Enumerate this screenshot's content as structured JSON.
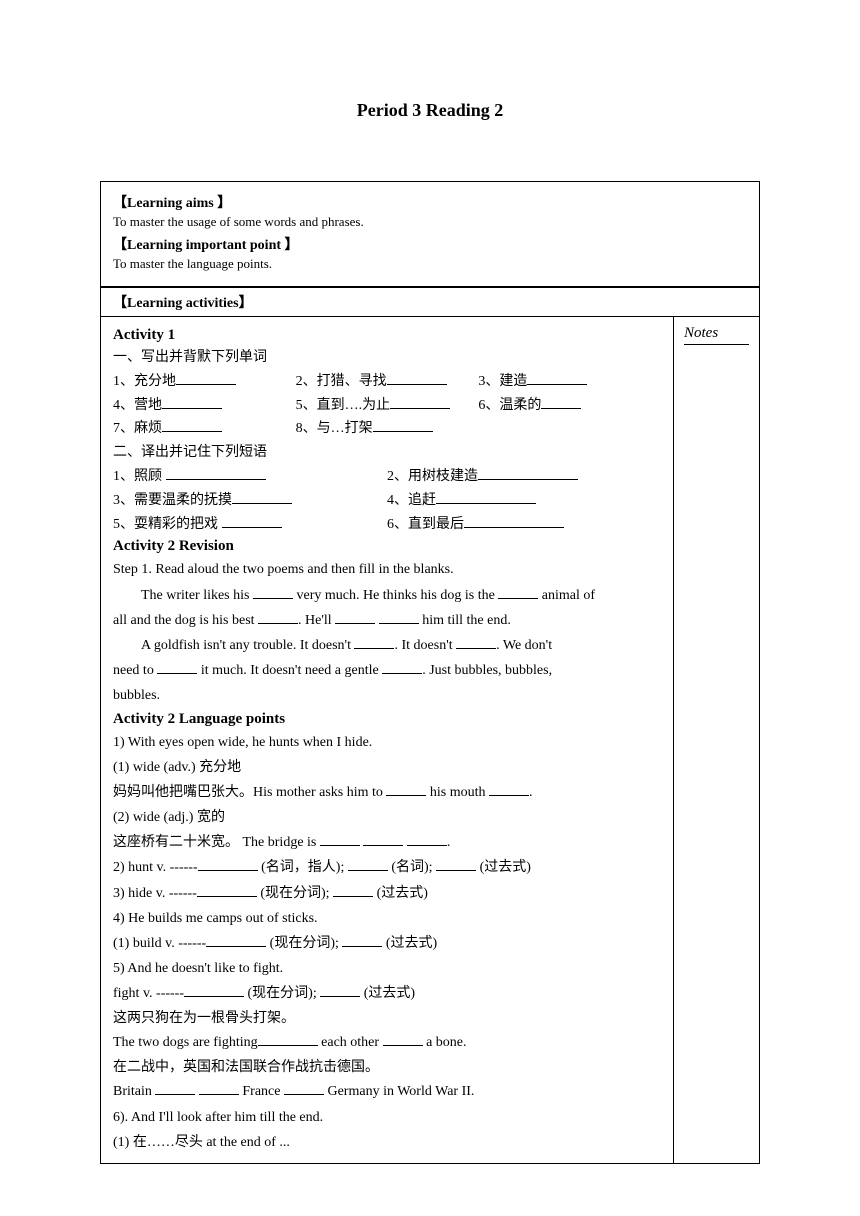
{
  "title": "Period 3   Reading 2",
  "section1": {
    "aims_label": "【Learning aims 】",
    "aims_text": "To master the usage of some words and phrases.",
    "point_label": "【Learning important point 】",
    "point_text": "To master the language points."
  },
  "section2": {
    "activities_label": "【Learning activities】"
  },
  "notes_label": "Notes",
  "activity1": {
    "title": "Activity 1",
    "sub1": "一、写出并背默下列单词",
    "v1": "1、充分地",
    "v2": "2、打猎、寻找",
    "v3": "3、建造",
    "v4": "4、营地",
    "v5": "5、直到….为止",
    "v6": "6、温柔的",
    "v7": "7、麻烦",
    "v8": "8、与…打架",
    "sub2": "二、译出并记住下列短语",
    "p1": "1、照顾",
    "p2": "2、用树枝建造",
    "p3": "3、需要温柔的抚摸",
    "p4": "4、追赶",
    "p5": "5、耍精彩的把戏",
    "p6": "6、直到最后"
  },
  "activity2a": {
    "title": "Activity 2    Revision",
    "step": "Step 1. Read aloud the two poems and then fill in the blanks.",
    "line1a": "The writer likes his ",
    "line1b": " very much. He thinks his dog is the ",
    "line1c": " animal of",
    "line2a": "all and the dog is his best ",
    "line2b": ". He'll ",
    "line2c": " him till the end.",
    "line3a": "A goldfish isn't any trouble. It doesn't ",
    "line3b": ". It doesn't ",
    "line3c": ". We don't",
    "line4a": "need to ",
    "line4b": " it much. It doesn't need a gentle ",
    "line4c": ". Just bubbles, bubbles,",
    "line5": "bubbles."
  },
  "activity2b": {
    "title": "Activity 2   Language points",
    "l1": "1) With eyes open wide, he hunts when I hide.",
    "l2": "(1)   wide   (adv.)  充分地",
    "l3a": "妈妈叫他把嘴巴张大。His mother asks him to ",
    "l3b": " his mouth ",
    "l3c": ".",
    "l4": "(2) wide (adj.)  宽的",
    "l5a": "这座桥有二十米宽。  The bridge is ",
    "l5b": ".",
    "l6a": "2) hunt   v. ------",
    "l6b": " (名词，指人); ",
    "l6c": " (名词); ",
    "l6d": " (过去式)",
    "l7a": "3) hide   v. ------",
    "l7b": " (现在分词); ",
    "l7c": " (过去式)",
    "l8": "4) He builds me camps out of sticks.",
    "l9a": "(1) build   v. ------",
    "l9b": " (现在分词); ",
    "l9c": " (过去式)",
    "l10": "5) And he doesn't like to fight.",
    "l11a": "fight   v. ------",
    "l11b": " (现在分词); ",
    "l11c": " (过去式)",
    "l12": "这两只狗在为一根骨头打架。",
    "l13a": "The two dogs are fighting",
    "l13b": " each other ",
    "l13c": " a bone.",
    "l14": "在二战中，英国和法国联合作战抗击德国。",
    "l15a": "Britain ",
    "l15b": " France ",
    "l15c": " Germany in World War II.",
    "l16": "6). And I'll look after him till the end.",
    "l17": "(1)  在……尽头      at the end of ..."
  }
}
